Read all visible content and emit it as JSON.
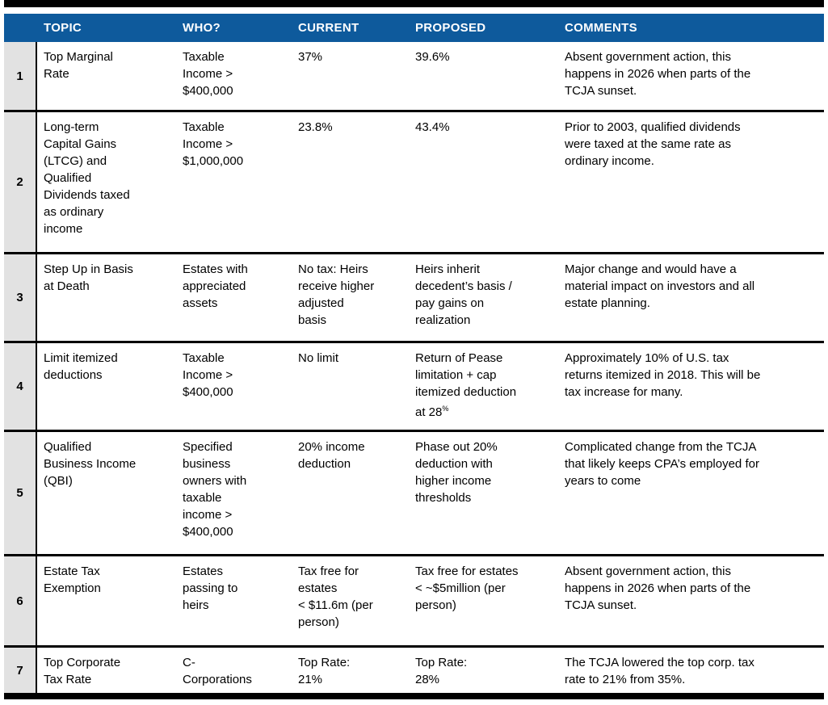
{
  "colors": {
    "header_bg": "#0e5a9c",
    "row_num_bg": "#e2e2e2",
    "bar": "#000000"
  },
  "header": {
    "columns": [
      "TOPIC",
      "WHO?",
      "CURRENT",
      "PROPOSED",
      "COMMENTS"
    ]
  },
  "rows": [
    {
      "num": "1",
      "topic": "Top Marginal\nRate",
      "who": "Taxable\nIncome >\n$400,000",
      "current": "37%",
      "proposed": "39.6%",
      "comments": "Absent government action, this\nhappens in 2026 when parts of the\nTCJA sunset."
    },
    {
      "num": "2",
      "topic": "Long-term\nCapital Gains\n(LTCG) and\nQualified\nDividends taxed\nas ordinary\nincome",
      "who": "Taxable\nIncome >\n$1,000,000",
      "current": "23.8%",
      "proposed": "43.4%",
      "comments": "Prior to 2003, qualified dividends\nwere taxed at the same rate as\nordinary income."
    },
    {
      "num": "3",
      "topic": "Step Up in Basis\nat Death",
      "who": "Estates with\nappreciated\nassets",
      "current": "No tax: Heirs\nreceive higher\nadjusted\nbasis",
      "proposed": "Heirs inherit\ndecedent’s basis /\npay gains on\nrealization",
      "comments": "Major change and would have a\nmaterial impact on investors and all\nestate planning."
    },
    {
      "num": "4",
      "topic": "Limit itemized\ndeductions",
      "who": "Taxable\nIncome >\n$400,000",
      "current": "No limit",
      "proposed": "Return of Pease\nlimitation + cap\nitemized deduction\nat 28",
      "proposed_sup": "%",
      "comments": "Approximately 10% of U.S. tax\nreturns itemized in 2018. This will be\ntax increase for many."
    },
    {
      "num": "5",
      "topic": "Qualified\nBusiness Income\n(QBI)",
      "who": "Specified\nbusiness\nowners with\ntaxable\nincome >\n$400,000",
      "current": "20% income\ndeduction",
      "proposed": "Phase out 20%\ndeduction with\nhigher income\nthresholds",
      "comments": "Complicated change from the TCJA\nthat likely keeps CPA’s employed for\nyears to come"
    },
    {
      "num": "6",
      "topic": "Estate Tax\nExemption",
      "who": "Estates\npassing to\nheirs",
      "current": "Tax free for\nestates\n< $11.6m (per\nperson)",
      "proposed": "Tax free for estates\n< ~$5million (per\nperson)",
      "comments": "Absent government action, this\nhappens in 2026 when parts of the\nTCJA sunset."
    },
    {
      "num": "7",
      "topic": "Top Corporate\nTax Rate",
      "who": "C-\nCorporations",
      "current": "Top Rate:\n21%",
      "proposed": "Top Rate:\n28%",
      "comments": "The TCJA lowered the top corp. tax\nrate to 21% from 35%."
    }
  ]
}
